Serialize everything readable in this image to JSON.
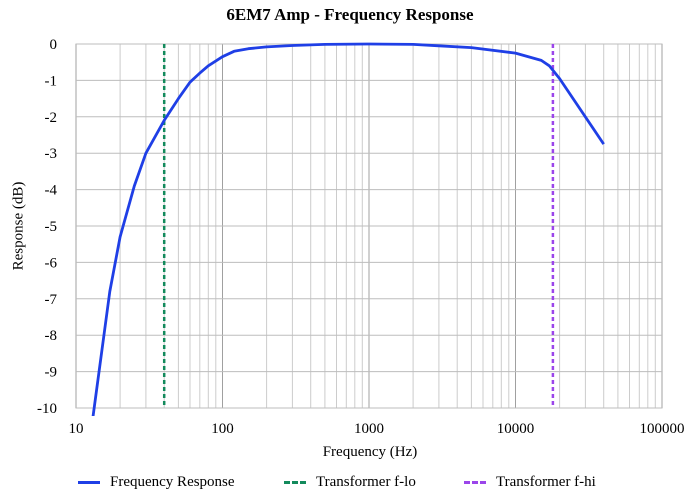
{
  "chart_data": {
    "type": "line",
    "title": "6EM7 Amp - Frequency Response",
    "xlabel": "Frequency (Hz)",
    "ylabel": "Response (dB)",
    "x_scale": "log",
    "xlim": [
      10,
      100000
    ],
    "ylim": [
      -10,
      0
    ],
    "x_ticks": [
      "10",
      "100",
      "1000",
      "10000",
      "100000"
    ],
    "y_ticks": [
      "0",
      "-1",
      "-2",
      "-3",
      "-4",
      "-5",
      "-6",
      "-7",
      "-8",
      "-9",
      "-10"
    ],
    "grid": true,
    "legend_position": "bottom",
    "series": [
      {
        "name": "Frequency Response",
        "color": "#1f3fe6",
        "style": "solid",
        "points": [
          [
            13,
            -10.3
          ],
          [
            17,
            -6.8
          ],
          [
            20,
            -5.3
          ],
          [
            25,
            -3.9
          ],
          [
            30,
            -3.0
          ],
          [
            40,
            -2.1
          ],
          [
            50,
            -1.5
          ],
          [
            60,
            -1.05
          ],
          [
            70,
            -0.8
          ],
          [
            80,
            -0.6
          ],
          [
            100,
            -0.35
          ],
          [
            120,
            -0.2
          ],
          [
            150,
            -0.13
          ],
          [
            200,
            -0.08
          ],
          [
            300,
            -0.04
          ],
          [
            500,
            -0.01
          ],
          [
            1000,
            0.0
          ],
          [
            2000,
            -0.01
          ],
          [
            3000,
            -0.05
          ],
          [
            5000,
            -0.1
          ],
          [
            10000,
            -0.25
          ],
          [
            15000,
            -0.45
          ],
          [
            17000,
            -0.6
          ],
          [
            20000,
            -0.95
          ],
          [
            40000,
            -2.75
          ]
        ]
      },
      {
        "name": "Transformer f-lo",
        "color": "#138a5c",
        "style": "dashed",
        "x": 40
      },
      {
        "name": "Transformer f-hi",
        "color": "#9b45ea",
        "style": "dashed",
        "x": 18000
      }
    ]
  }
}
